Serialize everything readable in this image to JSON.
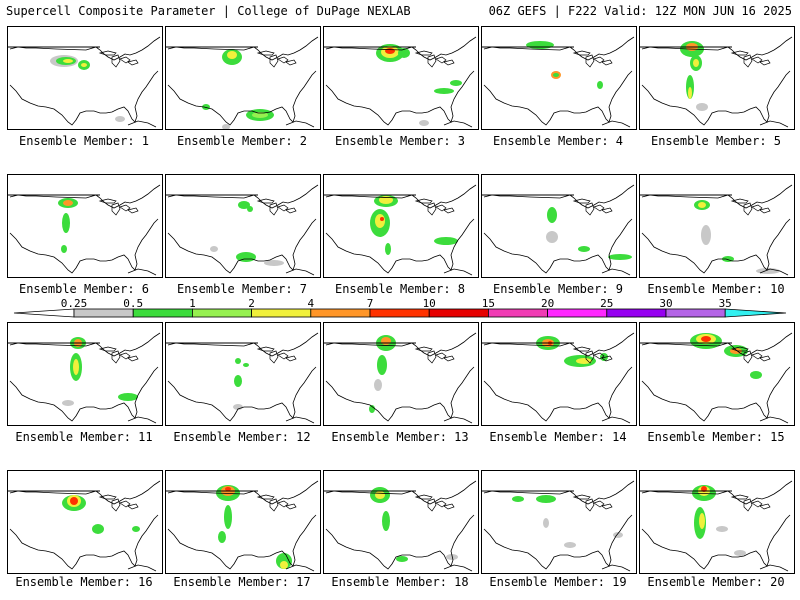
{
  "header": {
    "left": "Supercell Composite Parameter | College of DuPage NEXLAB",
    "right": "06Z GEFS | F222 Valid: 12Z MON JUN 16 2025"
  },
  "members": [
    {
      "label": "Ensemble Member: 1"
    },
    {
      "label": "Ensemble Member: 2"
    },
    {
      "label": "Ensemble Member: 3"
    },
    {
      "label": "Ensemble Member: 4"
    },
    {
      "label": "Ensemble Member: 5"
    },
    {
      "label": "Ensemble Member: 6"
    },
    {
      "label": "Ensemble Member: 7"
    },
    {
      "label": "Ensemble Member: 8"
    },
    {
      "label": "Ensemble Member: 9"
    },
    {
      "label": "Ensemble Member: 10"
    },
    {
      "label": "Ensemble Member: 11"
    },
    {
      "label": "Ensemble Member: 12"
    },
    {
      "label": "Ensemble Member: 13"
    },
    {
      "label": "Ensemble Member: 14"
    },
    {
      "label": "Ensemble Member: 15"
    },
    {
      "label": "Ensemble Member: 16"
    },
    {
      "label": "Ensemble Member: 17"
    },
    {
      "label": "Ensemble Member: 18"
    },
    {
      "label": "Ensemble Member: 19"
    },
    {
      "label": "Ensemble Member: 20"
    }
  ],
  "colorbar": {
    "ticks": [
      "0.25",
      "0.5",
      "1",
      "2",
      "4",
      "7",
      "10",
      "15",
      "20",
      "25",
      "30",
      "35"
    ],
    "colors": [
      "#c8c8c8",
      "#3cdc3c",
      "#96f050",
      "#f0f03c",
      "#ff9628",
      "#ff3200",
      "#e60000",
      "#f03cb4",
      "#ff28ff",
      "#9600f0",
      "#b464e6",
      "#32f0f0"
    ]
  },
  "colors": {
    "gray": "#c8c8c8",
    "green": "#3cdc3c",
    "lightgreen": "#96f050",
    "yellow": "#f0f03c",
    "orange": "#ff9628",
    "red": "#ff3200"
  }
}
